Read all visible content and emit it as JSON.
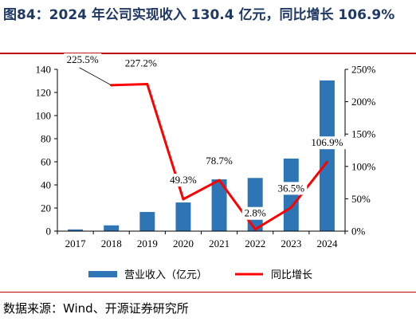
{
  "title": "图84：2024 年公司实现收入 130.4 亿元，同比增长 106.9%",
  "source": "数据来源：Wind、开源证券研究所",
  "colors": {
    "bar": "#2e75b6",
    "line": "#ff0000",
    "title": "#1f3864",
    "rule": "#c00000"
  },
  "chart_data": {
    "type": "bar",
    "categories": [
      "2017",
      "2018",
      "2019",
      "2020",
      "2021",
      "2022",
      "2023",
      "2024"
    ],
    "series": [
      {
        "name": "营业收入（亿元）",
        "type": "bar",
        "axis": "left",
        "values": [
          1.5,
          5.0,
          16.6,
          24.8,
          44.8,
          46.0,
          62.8,
          130.4
        ]
      },
      {
        "name": "同比增长",
        "type": "line",
        "axis": "right",
        "values": [
          null,
          225.5,
          227.2,
          49.3,
          78.7,
          2.8,
          36.5,
          106.9
        ],
        "labels": [
          "",
          "225.5%",
          "227.2%",
          "49.3%",
          "78.7%",
          "2.8%",
          "36.5%",
          "106.9%"
        ]
      }
    ],
    "ylim_left": [
      0,
      140
    ],
    "yticks_left": [
      "0",
      "20",
      "40",
      "60",
      "80",
      "100",
      "120",
      "140"
    ],
    "ylim_right": [
      0,
      250
    ],
    "yticks_right": [
      "0%",
      "50%",
      "100%",
      "150%",
      "200%",
      "250%"
    ],
    "legend_position": "bottom"
  }
}
